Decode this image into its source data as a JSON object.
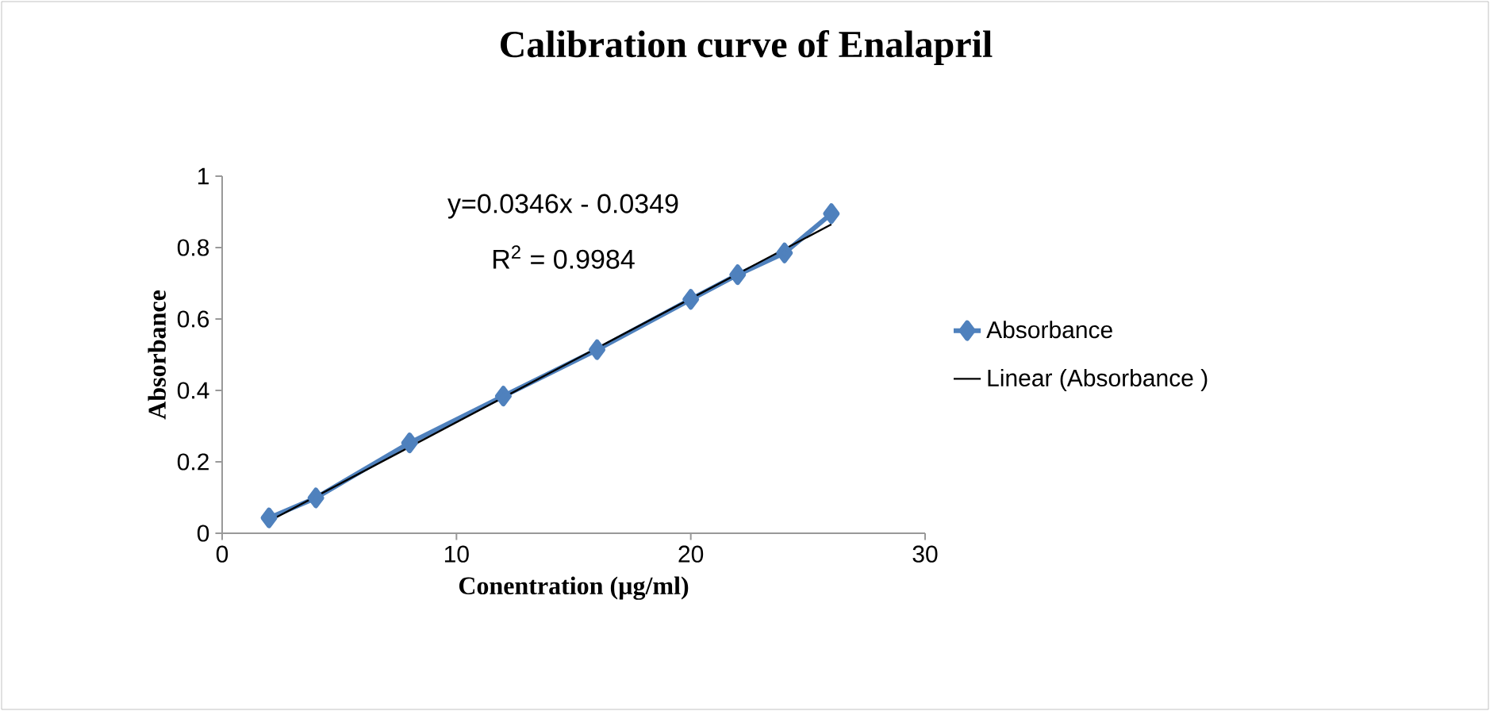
{
  "chart_data": {
    "type": "line",
    "title": "Calibration curve of Enalapril",
    "xlabel": "Conentration (µg/ml)",
    "ylabel": "Absorbance",
    "annotations": [
      "y=0.0346x - 0.0349",
      "R$^{2}$ = 0.9984"
    ],
    "xlim": [
      0,
      30
    ],
    "xticks": [
      0,
      10,
      20,
      30
    ],
    "ylim": [
      0,
      1
    ],
    "yticks": [
      0,
      0.2,
      0.4,
      0.6,
      0.8,
      1
    ],
    "legend": "right",
    "grid": false,
    "series": [
      {
        "name": "Absorbance",
        "color": "#4f81bd",
        "marker": "diamond",
        "x": [
          2,
          4,
          8,
          12,
          16,
          20,
          22,
          24,
          26
        ],
        "values": [
          0.043,
          0.099,
          0.253,
          0.384,
          0.514,
          0.655,
          0.724,
          0.785,
          0.895
        ]
      },
      {
        "name": "Linear (Absorbance  )",
        "color": "#000000",
        "marker": "none",
        "x": [
          2,
          26
        ],
        "values": [
          0.034,
          0.865
        ]
      }
    ]
  }
}
